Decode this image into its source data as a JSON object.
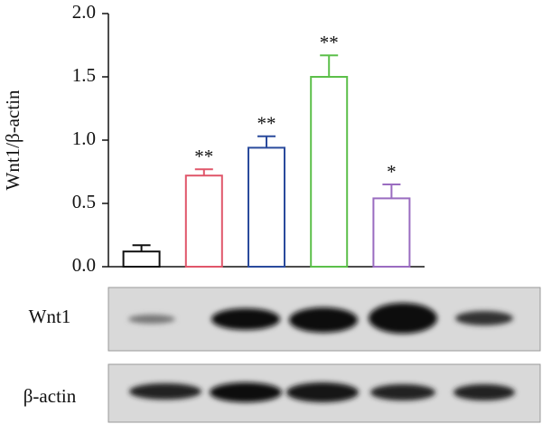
{
  "chart_data": {
    "type": "bar",
    "y_label": "Wnt1/β-actin",
    "categories": [
      null,
      null,
      null,
      null,
      null
    ],
    "values": [
      0.12,
      0.72,
      0.94,
      1.5,
      0.54
    ],
    "errors": [
      0.05,
      0.05,
      0.09,
      0.17,
      0.11
    ],
    "colors": [
      "#111111",
      "#e0566a",
      "#2a4a9c",
      "#5cbf4a",
      "#9a6cc0"
    ],
    "annotations": [
      null,
      "**",
      "**",
      "**",
      "*"
    ],
    "ylim": [
      0,
      2
    ],
    "yticks": [
      {
        "value": 0,
        "label": "0.0"
      },
      {
        "value": 0.5,
        "label": "0.5"
      },
      {
        "value": 1,
        "label": "1.0"
      },
      {
        "value": 1.5,
        "label": "1.5"
      },
      {
        "value": 2,
        "label": "2.0"
      }
    ],
    "grid": false
  },
  "blots": [
    {
      "label": "Wnt1"
    },
    {
      "label": "β-actin"
    }
  ]
}
